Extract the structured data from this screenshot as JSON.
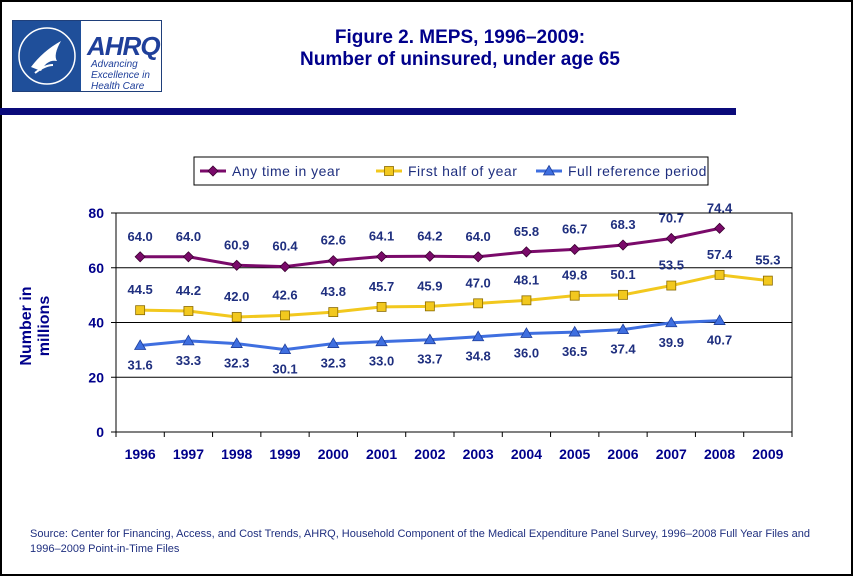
{
  "logo": {
    "name": "AHRQ",
    "tagline_lines": [
      "Advancing",
      "Excellence in",
      "Health Care"
    ]
  },
  "title": {
    "line1": "Figure 2. MEPS, 1996–2009:",
    "line2": "Number of uninsured, under age 65"
  },
  "source": "Source: Center for Financing, Access, and Cost Trends, AHRQ, Household Component of the Medical Expenditure Panel Survey, 1996–2008 Full Year Files and 1996–2009 Point-in-Time Files",
  "colors": {
    "title": "#00008b",
    "header_rule": "#0a0a7a",
    "any_time": "#7a0a6a",
    "first_half": "#f2c81e",
    "full_period": "#3f6fe0"
  },
  "chart_data": {
    "type": "line",
    "ylabel": "Number in millions",
    "xlabel": "",
    "ylim": [
      0,
      80
    ],
    "yticks": [
      0,
      20,
      40,
      60,
      80
    ],
    "grid": "horizontal",
    "legend_position": "top",
    "categories": [
      "1996",
      "1997",
      "1998",
      "1999",
      "2000",
      "2001",
      "2002",
      "2003",
      "2004",
      "2005",
      "2006",
      "2007",
      "2008",
      "2009"
    ],
    "series": [
      {
        "name": "Any time in year",
        "marker": "diamond",
        "color": "#7a0a6a",
        "values": [
          64.0,
          64.0,
          60.9,
          60.4,
          62.6,
          64.1,
          64.2,
          64.0,
          65.8,
          66.7,
          68.3,
          70.7,
          74.4,
          null
        ],
        "labels": [
          "64.0",
          "64.0",
          "60.9",
          "60.4",
          "62.6",
          "64.1",
          "64.2",
          "64.0",
          "65.8",
          "66.7",
          "68.3",
          "70.7",
          "74.4",
          ""
        ]
      },
      {
        "name": "First half of year",
        "marker": "square",
        "color": "#f2c81e",
        "values": [
          44.5,
          44.2,
          42.0,
          42.6,
          43.8,
          45.7,
          45.9,
          47.0,
          48.1,
          49.8,
          50.1,
          53.5,
          57.4,
          55.3
        ],
        "labels": [
          "44.5",
          "44.2",
          "42.0",
          "42.6",
          "43.8",
          "45.7",
          "45.9",
          "47.0",
          "48.1",
          "49.8",
          "50.1",
          "53.5",
          "57.4",
          "55.3"
        ]
      },
      {
        "name": "Full reference period",
        "marker": "triangle",
        "color": "#3f6fe0",
        "values": [
          31.6,
          33.3,
          32.3,
          30.1,
          32.3,
          33.0,
          33.7,
          34.8,
          36.0,
          36.5,
          37.4,
          39.9,
          40.7,
          null
        ],
        "labels": [
          "31.6",
          "33.3",
          "32.3",
          "30.1",
          "32.3",
          "33.0",
          "33.7",
          "34.8",
          "36.0",
          "36.5",
          "37.4",
          "39.9",
          "40.7",
          ""
        ]
      }
    ]
  }
}
